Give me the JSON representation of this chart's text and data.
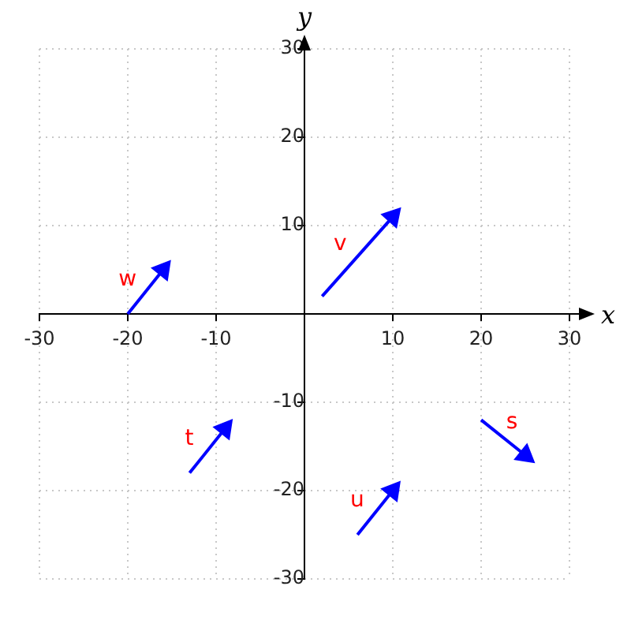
{
  "chart_data": {
    "type": "line",
    "xlabel": "x",
    "ylabel": "y",
    "xlim": [
      -30,
      30
    ],
    "ylim": [
      -30,
      30
    ],
    "xticks": [
      -30,
      -20,
      -10,
      10,
      20,
      30
    ],
    "yticks": [
      -30,
      -20,
      -10,
      10,
      20,
      30
    ],
    "grid": true,
    "series": [
      {
        "name": "w",
        "color": "#0000ff",
        "x": [
          -20,
          -16
        ],
        "values": [
          0,
          5
        ]
      },
      {
        "name": "v",
        "color": "#0000ff",
        "x": [
          2,
          10
        ],
        "values": [
          2,
          11
        ]
      },
      {
        "name": "t",
        "color": "#0000ff",
        "x": [
          -13,
          -9
        ],
        "values": [
          -18,
          -13
        ]
      },
      {
        "name": "u",
        "color": "#0000ff",
        "x": [
          6,
          10
        ],
        "values": [
          -25,
          -20
        ]
      },
      {
        "name": "s",
        "color": "#0000ff",
        "x": [
          20,
          25
        ],
        "values": [
          -12,
          -16
        ]
      }
    ]
  }
}
